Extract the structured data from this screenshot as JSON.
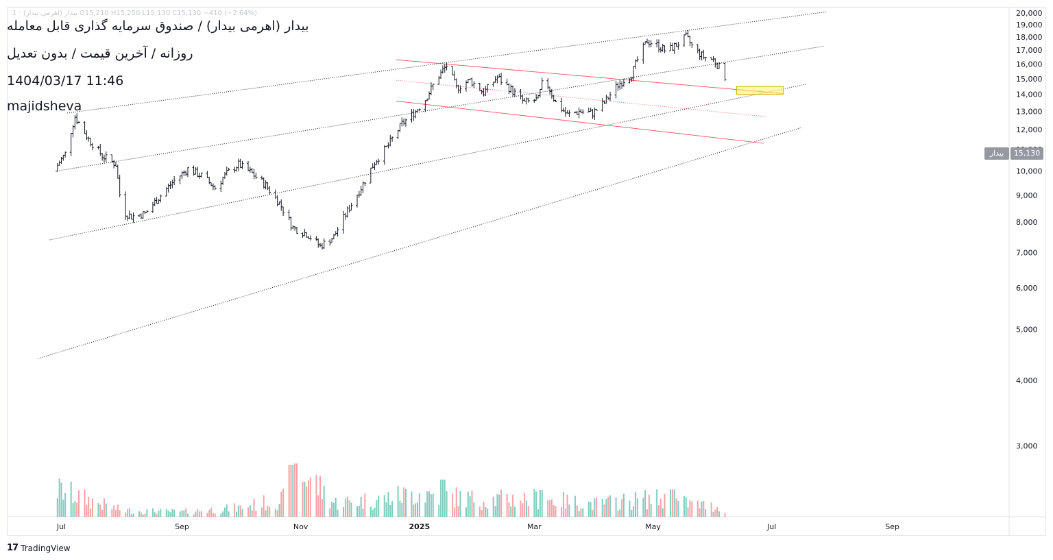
{
  "header": {
    "ohlc_text": "1 · بیدار (اهرمی بیدار)   O15,210  H15,250  L15,130  C15,130  −410 (−2.64%)",
    "title_line": "بیدار (اهرمی بیدار) / صندوق سرمایه گذاری قابل معامله",
    "subtitle_line": "روزانه / آخرین قیمت / بدون تعدیل",
    "datetime_line": "1404/03/17 11:46",
    "author_line": "majidsheva"
  },
  "price_tag": {
    "symbol": "بیدار",
    "value": "15,130"
  },
  "branding": {
    "logo": "17",
    "name": "TradingView"
  },
  "colors": {
    "bar": "#131722",
    "volume_up": "#7fcbbd",
    "volume_down": "#f3a3a6",
    "channel_red": "#f23645",
    "channel_dotted": "#131722",
    "highlight_fill": "#fff176",
    "highlight_stroke": "#c9b400",
    "grid_axis": "#e0e3eb",
    "tag_bg": "#9598a1"
  },
  "chart_data": {
    "type": "ohlc",
    "scale": "log",
    "x_ticks": [
      {
        "label": "Jul",
        "date": "2024-07-01",
        "bold": false
      },
      {
        "label": "Sep",
        "date": "2024-09-01",
        "bold": false
      },
      {
        "label": "Nov",
        "date": "2024-11-01",
        "bold": false
      },
      {
        "label": "2025",
        "date": "2025-01-01",
        "bold": true
      },
      {
        "label": "Mar",
        "date": "2025-03-01",
        "bold": false
      },
      {
        "label": "May",
        "date": "2025-05-01",
        "bold": false
      },
      {
        "label": "Jul",
        "date": "2025-07-01",
        "bold": false
      },
      {
        "label": "Sep",
        "date": "2025-09-01",
        "bold": false
      }
    ],
    "y_ticks": [
      "20,000",
      "19,000",
      "18,000",
      "17,000",
      "16,000",
      "15,000",
      "14,000",
      "13,000",
      "12,000",
      "11,000",
      "10,000",
      "9,000",
      "8,000",
      "7,000",
      "6,000",
      "5,000",
      "4,000",
      "3,000"
    ],
    "ylim": [
      2300,
      20000
    ],
    "xlim": [
      "2024-06-03",
      "2025-10-31"
    ],
    "last_price": 15130,
    "price_path": [
      [
        "2024-06-27",
        10000
      ],
      [
        "2024-07-03",
        10800
      ],
      [
        "2024-07-08",
        12700
      ],
      [
        "2024-07-15",
        11500
      ],
      [
        "2024-07-22",
        10700
      ],
      [
        "2024-07-29",
        10300
      ],
      [
        "2024-08-01",
        8400
      ],
      [
        "2024-08-06",
        8200
      ],
      [
        "2024-08-13",
        8300
      ],
      [
        "2024-08-20",
        8900
      ],
      [
        "2024-08-28",
        9600
      ],
      [
        "2024-09-04",
        10100
      ],
      [
        "2024-09-11",
        9800
      ],
      [
        "2024-09-18",
        9300
      ],
      [
        "2024-09-24",
        9900
      ],
      [
        "2024-09-30",
        10300
      ],
      [
        "2024-10-07",
        9900
      ],
      [
        "2024-10-14",
        9400
      ],
      [
        "2024-10-21",
        8700
      ],
      [
        "2024-10-28",
        7800
      ],
      [
        "2024-11-04",
        7600
      ],
      [
        "2024-11-11",
        7200
      ],
      [
        "2024-11-18",
        7500
      ],
      [
        "2024-11-25",
        8400
      ],
      [
        "2024-12-02",
        9300
      ],
      [
        "2024-12-09",
        10400
      ],
      [
        "2024-12-16",
        11200
      ],
      [
        "2024-12-23",
        12300
      ],
      [
        "2024-12-30",
        13000
      ],
      [
        "2025-01-04",
        13700
      ],
      [
        "2025-01-10",
        15000
      ],
      [
        "2025-01-15",
        15900
      ],
      [
        "2025-01-20",
        14400
      ],
      [
        "2025-01-27",
        14900
      ],
      [
        "2025-02-03",
        14100
      ],
      [
        "2025-02-10",
        15100
      ],
      [
        "2025-02-17",
        14300
      ],
      [
        "2025-02-24",
        13500
      ],
      [
        "2025-03-03",
        13700
      ],
      [
        "2025-03-06",
        15100
      ],
      [
        "2025-03-12",
        13500
      ],
      [
        "2025-03-18",
        12800
      ],
      [
        "2025-03-24",
        13000
      ],
      [
        "2025-03-31",
        12900
      ],
      [
        "2025-04-06",
        13500
      ],
      [
        "2025-04-13",
        14600
      ],
      [
        "2025-04-20",
        15300
      ],
      [
        "2025-04-24",
        16600
      ],
      [
        "2025-04-28",
        17700
      ],
      [
        "2025-05-03",
        17400
      ],
      [
        "2025-05-08",
        16900
      ],
      [
        "2025-05-13",
        17400
      ],
      [
        "2025-05-18",
        18000
      ],
      [
        "2025-05-22",
        17100
      ],
      [
        "2025-05-27",
        16500
      ],
      [
        "2025-06-01",
        16300
      ],
      [
        "2025-06-05",
        15600
      ],
      [
        "2025-06-07",
        15130
      ]
    ],
    "volume_range": [
      0,
      10000000
    ],
    "volume_path": [
      [
        "2024-06-27",
        2000000
      ],
      [
        "2024-08-01",
        450000
      ],
      [
        "2024-09-01",
        350000
      ],
      [
        "2024-10-01",
        650000
      ],
      [
        "2024-10-28",
        1400000
      ],
      [
        "2024-11-05",
        2900000
      ],
      [
        "2024-11-18",
        1000000
      ],
      [
        "2024-12-10",
        1200000
      ],
      [
        "2025-01-01",
        1700000
      ],
      [
        "2025-02-01",
        1200000
      ],
      [
        "2025-03-01",
        1300000
      ],
      [
        "2025-04-01",
        900000
      ],
      [
        "2025-05-01",
        1300000
      ],
      [
        "2025-06-07",
        600000
      ]
    ],
    "volume_spikes": [
      [
        "2024-06-27",
        8800000
      ],
      [
        "2024-10-27",
        3700000
      ],
      [
        "2024-10-30",
        3800000
      ],
      [
        "2024-11-02",
        2500000
      ],
      [
        "2025-01-13",
        2650000
      ],
      [
        "2025-03-05",
        1900000
      ],
      [
        "2025-05-11",
        1950000
      ]
    ],
    "channels": {
      "dotted_up": [
        {
          "from": [
            "2024-07-04",
            12900
          ],
          "to": [
            "2025-07-29",
            20100
          ]
        },
        {
          "from": [
            "2024-06-28",
            10000
          ],
          "to": [
            "2025-07-28",
            17300
          ]
        },
        {
          "from": [
            "2024-06-25",
            7400
          ],
          "to": [
            "2025-07-19",
            14650
          ]
        },
        {
          "from": [
            "2024-06-19",
            4400
          ],
          "to": [
            "2025-07-16",
            12100
          ]
        }
      ],
      "red_down": [
        {
          "from": [
            "2024-12-20",
            16300
          ],
          "to": [
            "2025-07-07",
            14050
          ],
          "style": "solid"
        },
        {
          "from": [
            "2024-12-20",
            14900
          ],
          "to": [
            "2025-06-28",
            12700
          ],
          "style": "dotted"
        },
        {
          "from": [
            "2024-12-20",
            13600
          ],
          "to": [
            "2025-06-27",
            11300
          ],
          "style": "solid"
        }
      ]
    },
    "highlight_zone": {
      "x": [
        "2025-06-13",
        "2025-07-07"
      ],
      "y": [
        14000,
        14500
      ]
    }
  }
}
